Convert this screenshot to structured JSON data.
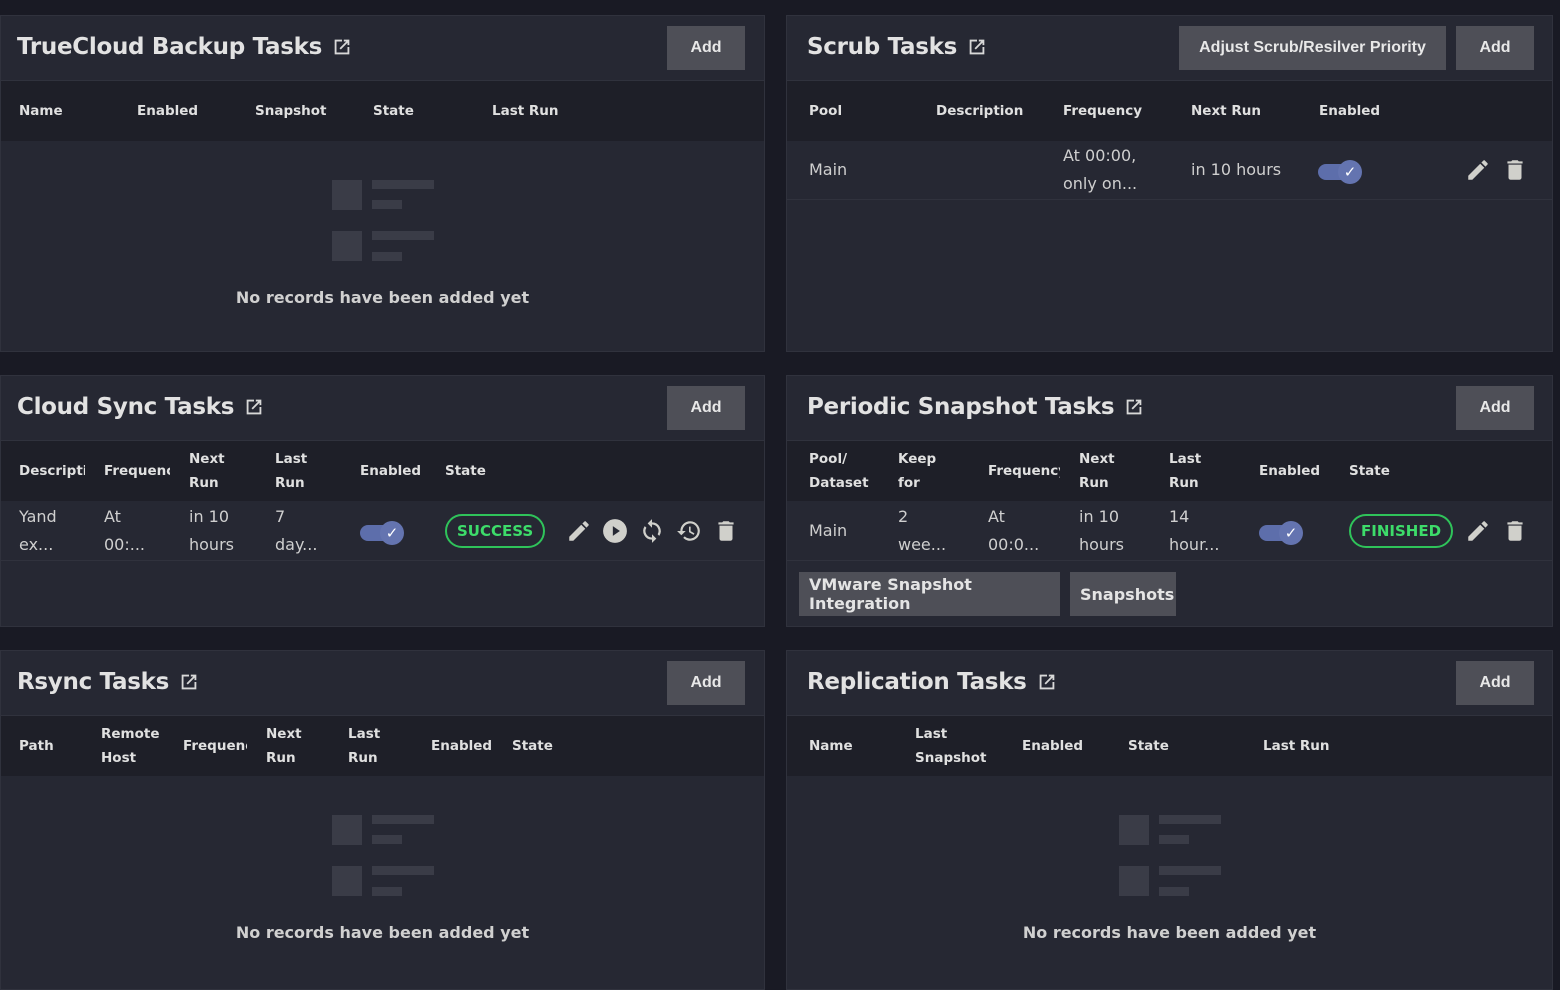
{
  "empty_text": "No records have been added yet",
  "add_label": "Add",
  "colors": {
    "background": "#191a24",
    "card": "#262833",
    "toggle": "#5d6eab",
    "success": "#3ddc6a"
  },
  "truecloud": {
    "title": "TrueCloud Backup Tasks",
    "columns": [
      "Name",
      "Enabled",
      "Snapshot",
      "State",
      "Last Run"
    ]
  },
  "scrub": {
    "title": "Scrub Tasks",
    "priority_label": "Adjust Scrub/Resilver Priority",
    "columns": [
      "Pool",
      "Description",
      "Frequency",
      "Next Run",
      "Enabled"
    ],
    "rows": [
      {
        "pool": "Main",
        "description": "",
        "frequency_l1": "At 00:00,",
        "frequency_l2": "only on...",
        "next_run": "in 10 hours",
        "enabled": true
      }
    ]
  },
  "cloudsync": {
    "title": "Cloud Sync Tasks",
    "columns": [
      "Descripti",
      "Frequenc",
      "Next Run",
      "Last Run",
      "Enabled",
      "State"
    ],
    "rows": [
      {
        "description_l1": "Yand",
        "description_l2": "ex...",
        "frequency_l1": "At",
        "frequency_l2": "00:...",
        "next_l1": "in 10",
        "next_l2": "hours",
        "last_l1": "7",
        "last_l2": "day...",
        "enabled": true,
        "state": "SUCCESS"
      }
    ]
  },
  "periodic": {
    "title": "Periodic Snapshot Tasks",
    "columns": [
      "Pool/ Dataset",
      "Keep for",
      "Frequency",
      "Next Run",
      "Last Run",
      "Enabled",
      "State"
    ],
    "rows": [
      {
        "pool": "Main",
        "keep_l1": "2",
        "keep_l2": "wee...",
        "frequency_l1": "At",
        "frequency_l2": "00:0...",
        "next_l1": "in 10",
        "next_l2": "hours",
        "last_l1": "14",
        "last_l2": "hour...",
        "enabled": true,
        "state": "FINISHED"
      }
    ],
    "vmware_label": "VMware Snapshot Integration",
    "snapshots_label": "Snapshots"
  },
  "rsync": {
    "title": "Rsync Tasks",
    "columns": [
      "Path",
      "Remote Host",
      "Frequenc",
      "Next Run",
      "Last Run",
      "Enabled",
      "State"
    ]
  },
  "replication": {
    "title": "Replication Tasks",
    "columns": [
      "Name",
      "Last Snapshot",
      "Enabled",
      "State",
      "Last Run"
    ]
  }
}
